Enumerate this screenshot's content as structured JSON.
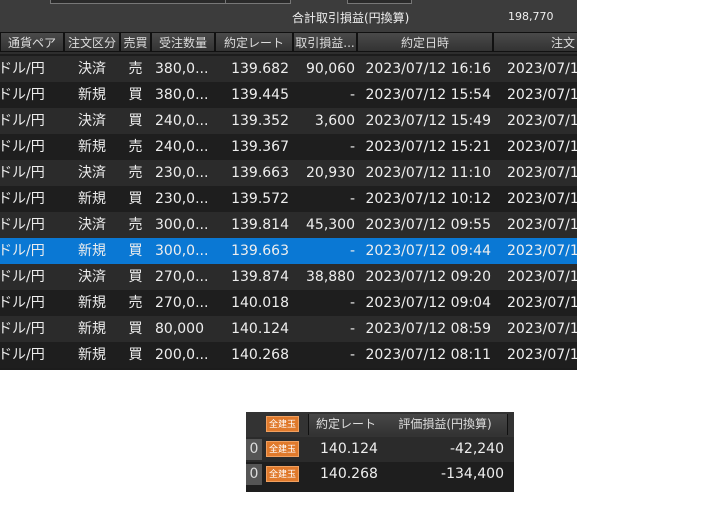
{
  "summary": {
    "label": "合計取引損益(円換算)",
    "value": "198,770"
  },
  "columns": [
    "通貨ペア",
    "注文区分",
    "売買",
    "受注数量",
    "約定レート",
    "取引損益...",
    "約定日時",
    "注文日"
  ],
  "rows": [
    [
      "ドル/円",
      "決済",
      "売",
      "380,0...",
      "139.682",
      "90,060",
      "2023/07/12 16:16",
      "2023/07/1"
    ],
    [
      "ドル/円",
      "新規",
      "買",
      "380,0...",
      "139.445",
      "-",
      "2023/07/12 15:54",
      "2023/07/1"
    ],
    [
      "ドル/円",
      "決済",
      "買",
      "240,0...",
      "139.352",
      "3,600",
      "2023/07/12 15:49",
      "2023/07/1"
    ],
    [
      "ドル/円",
      "新規",
      "売",
      "240,0...",
      "139.367",
      "-",
      "2023/07/12 15:21",
      "2023/07/1"
    ],
    [
      "ドル/円",
      "決済",
      "売",
      "230,0...",
      "139.663",
      "20,930",
      "2023/07/12 11:10",
      "2023/07/1"
    ],
    [
      "ドル/円",
      "新規",
      "買",
      "230,0...",
      "139.572",
      "-",
      "2023/07/12 10:12",
      "2023/07/1"
    ],
    [
      "ドル/円",
      "決済",
      "売",
      "300,0...",
      "139.814",
      "45,300",
      "2023/07/12 09:55",
      "2023/07/1"
    ],
    [
      "ドル/円",
      "新規",
      "買",
      "300,0...",
      "139.663",
      "-",
      "2023/07/12 09:44",
      "2023/07/1"
    ],
    [
      "ドル/円",
      "決済",
      "買",
      "270,0...",
      "139.874",
      "38,880",
      "2023/07/12 09:20",
      "2023/07/1"
    ],
    [
      "ドル/円",
      "新規",
      "売",
      "270,0...",
      "140.018",
      "-",
      "2023/07/12 09:04",
      "2023/07/1"
    ],
    [
      "ドル/円",
      "新規",
      "買",
      "80,000",
      "140.124",
      "-",
      "2023/07/12 08:59",
      "2023/07/1"
    ],
    [
      "ドル/円",
      "新規",
      "買",
      "200,0...",
      "140.268",
      "-",
      "2023/07/12 08:11",
      "2023/07/1"
    ]
  ],
  "selected_row": 7,
  "sub": {
    "badge": "全建玉",
    "columns": [
      "約定レート",
      "評価損益(円換算)"
    ],
    "rows": [
      {
        "lead": "0",
        "rate": "140.124",
        "pl": "-42,240"
      },
      {
        "lead": "0",
        "rate": "140.268",
        "pl": "-134,400"
      }
    ]
  },
  "colors": {
    "selected": "#0a78d4",
    "badge": "#e07a2c"
  }
}
